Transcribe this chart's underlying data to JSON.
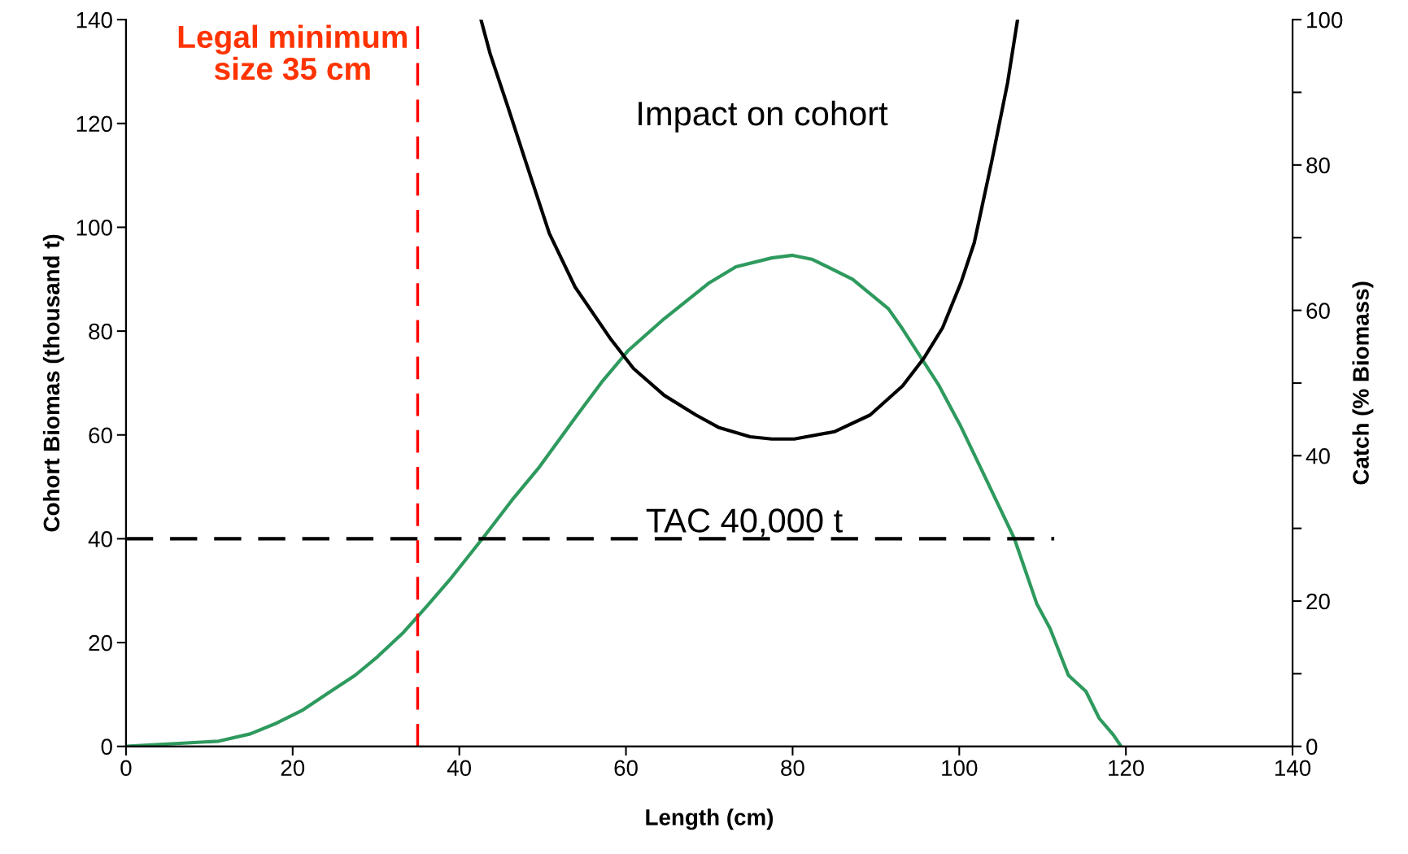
{
  "chart_data": {
    "type": "line",
    "xlabel": "Length (cm)",
    "ylabel": "Cohort Biomas (thousand t)",
    "y2label": "Catch (% Biomass)",
    "xlim": [
      0,
      140
    ],
    "xticks": [
      0,
      20,
      40,
      60,
      80,
      100,
      120,
      140
    ],
    "ylim": [
      0,
      140
    ],
    "yticks": [
      0,
      20,
      40,
      60,
      80,
      100,
      120,
      140
    ],
    "y2lim": [
      0,
      100
    ],
    "y2ticks": [
      0,
      {
        "value": 10,
        "label": null
      },
      20,
      {
        "value": 30,
        "label": null
      },
      40,
      {
        "value": 50,
        "label": null
      },
      60,
      {
        "value": 70,
        "label": null
      },
      80,
      {
        "value": 90,
        "label": null
      },
      100
    ],
    "grid": false,
    "legend": false,
    "marker": "none",
    "series": [
      {
        "color": "#2e9a5e",
        "line_style": "solid",
        "x": [
          0,
          11.1,
          14.9,
          18.1,
          21.1,
          24.2,
          27.5,
          30.2,
          33.2,
          36.1,
          38.8,
          43.1,
          46.3,
          49.6,
          53.9,
          57.1,
          60.3,
          64.6,
          70.0,
          73.2,
          77.5,
          80.0,
          82.4,
          87.2,
          91.5,
          93.2,
          97.5,
          100.2,
          102.8,
          106.6,
          109.3,
          110.9,
          113.1,
          115.2,
          116.8,
          118.5,
          119.3
        ],
        "values": [
          0,
          1.0,
          2.4,
          4.5,
          6.9,
          10.2,
          13.7,
          17.3,
          21.8,
          27.0,
          32.0,
          40.7,
          47.4,
          53.8,
          63.3,
          70.2,
          76.3,
          82.4,
          89.3,
          92.4,
          94.1,
          94.6,
          93.8,
          90.0,
          84.3,
          80.4,
          69.7,
          61.6,
          52.9,
          40.1,
          27.5,
          22.7,
          13.7,
          10.6,
          5.4,
          2.2,
          0.3
        ]
      },
      {
        "color": "#000000",
        "line_style": "solid",
        "axis": "y2",
        "x": [
          42.6,
          43.7,
          45.8,
          47.9,
          50.8,
          53.9,
          58.2,
          60.9,
          64.6,
          68.4,
          71.1,
          74.9,
          77.5,
          80.2,
          85.0,
          89.3,
          93.2,
          95.8,
          98.0,
          100.2,
          101.8,
          103.9,
          105.8,
          107.0
        ],
        "values": [
          100,
          95.3,
          88.1,
          80.7,
          70.6,
          63.2,
          56.0,
          52.0,
          48.3,
          45.6,
          43.9,
          42.6,
          42.3,
          42.3,
          43.3,
          45.6,
          49.6,
          53.5,
          57.6,
          63.8,
          69.3,
          80.5,
          91.3,
          100
        ]
      },
      {
        "color": "#000000",
        "line_style": "dashed",
        "x": [
          0,
          111.4
        ],
        "values": [
          40,
          40
        ]
      }
    ],
    "ref_lines": [
      {
        "axis": "x",
        "value": 35,
        "label": "Legal minimum\nsize 35 cm",
        "color": "#ff0000",
        "line_style": "dashed"
      }
    ],
    "annotations": [
      "Impact on cohort",
      "TAC 40,000 t"
    ]
  }
}
